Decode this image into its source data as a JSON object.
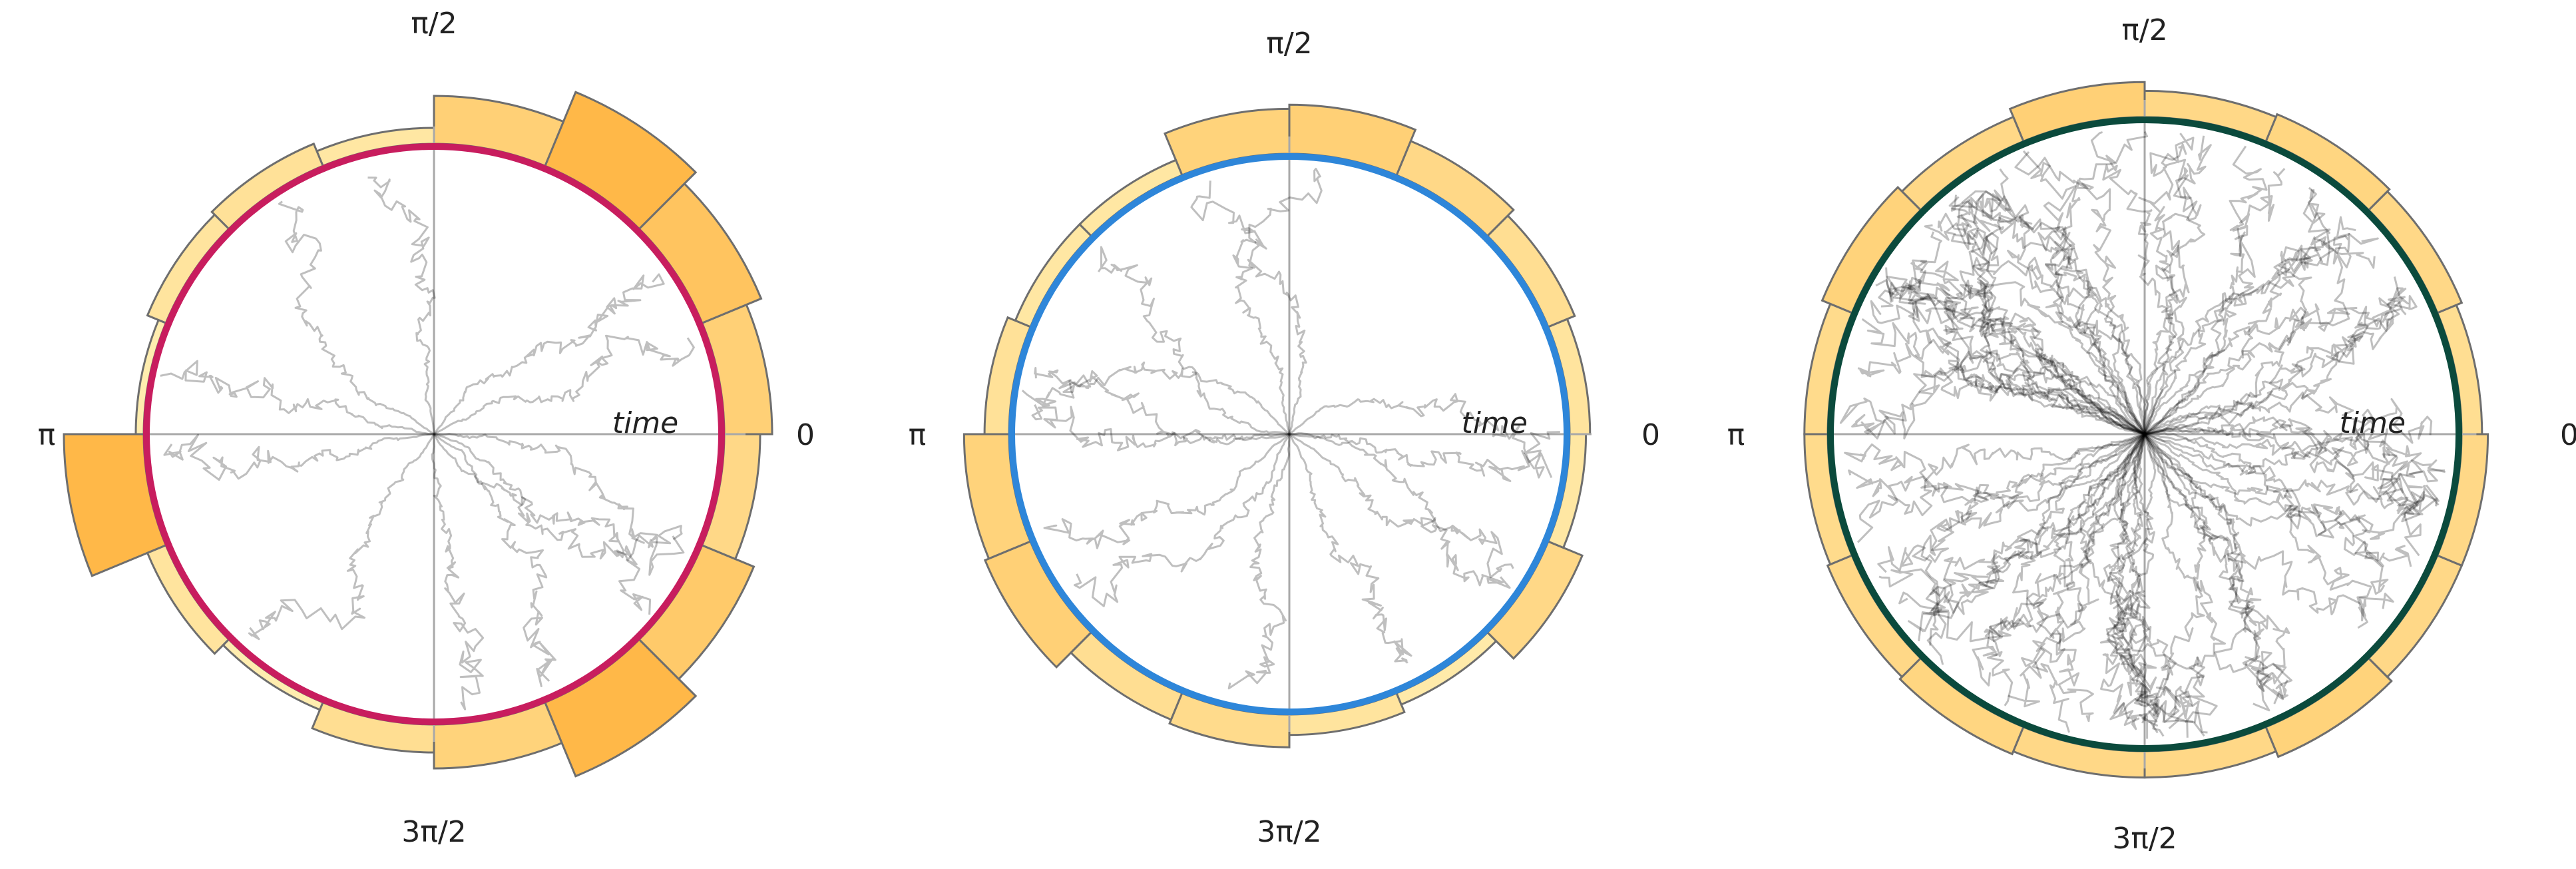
{
  "chart_data": [
    {
      "type": "polar",
      "panel": "left",
      "circle_color": "#c81d5e",
      "angle_tick_labels": [
        "0",
        "π/2",
        "π",
        "3π/2"
      ],
      "radial_label": "time",
      "histogram_bins": 16,
      "histogram_values": [
        0.6,
        0.8,
        1.0,
        0.6,
        0.2,
        0.3,
        0.25,
        0.1,
        1.0,
        0.25,
        0.1,
        0.35,
        0.55,
        1.0,
        0.7,
        0.45
      ],
      "trajectory_count": 12,
      "trajectory_angles_rad": [
        0.02,
        0.55,
        0.95,
        1.55,
        2.55,
        3.12,
        3.22,
        4.2,
        4.75,
        5.25,
        5.6,
        6.0
      ]
    },
    {
      "type": "polar",
      "panel": "middle",
      "circle_color": "#2e86d9",
      "angle_tick_labels": [
        "0",
        "π/2",
        "π",
        "3π/2"
      ],
      "radial_label": "time",
      "histogram_bins": 16,
      "histogram_values": [
        0.25,
        0.35,
        0.45,
        0.6,
        0.55,
        0.2,
        0.2,
        0.3,
        0.55,
        0.6,
        0.35,
        0.4,
        0.25,
        0.15,
        0.45,
        0.2
      ],
      "trajectory_count": 14,
      "trajectory_angles_rad": [
        0.1,
        0.7,
        1.3,
        1.8,
        2.4,
        2.85,
        3.1,
        3.4,
        3.8,
        4.25,
        4.7,
        5.2,
        5.7,
        6.1
      ]
    },
    {
      "type": "polar",
      "panel": "right",
      "circle_color": "#0b4a3c",
      "angle_tick_labels": [
        "0",
        "π/2",
        "π",
        "3π/2"
      ],
      "radial_label": "time",
      "histogram_bins": 16,
      "histogram_values": [
        0.35,
        0.45,
        0.5,
        0.45,
        0.6,
        0.45,
        0.55,
        0.4,
        0.4,
        0.45,
        0.5,
        0.45,
        0.45,
        0.55,
        0.45,
        0.45
      ],
      "trajectory_count": 80,
      "trajectory_angles_rad": []
    }
  ]
}
